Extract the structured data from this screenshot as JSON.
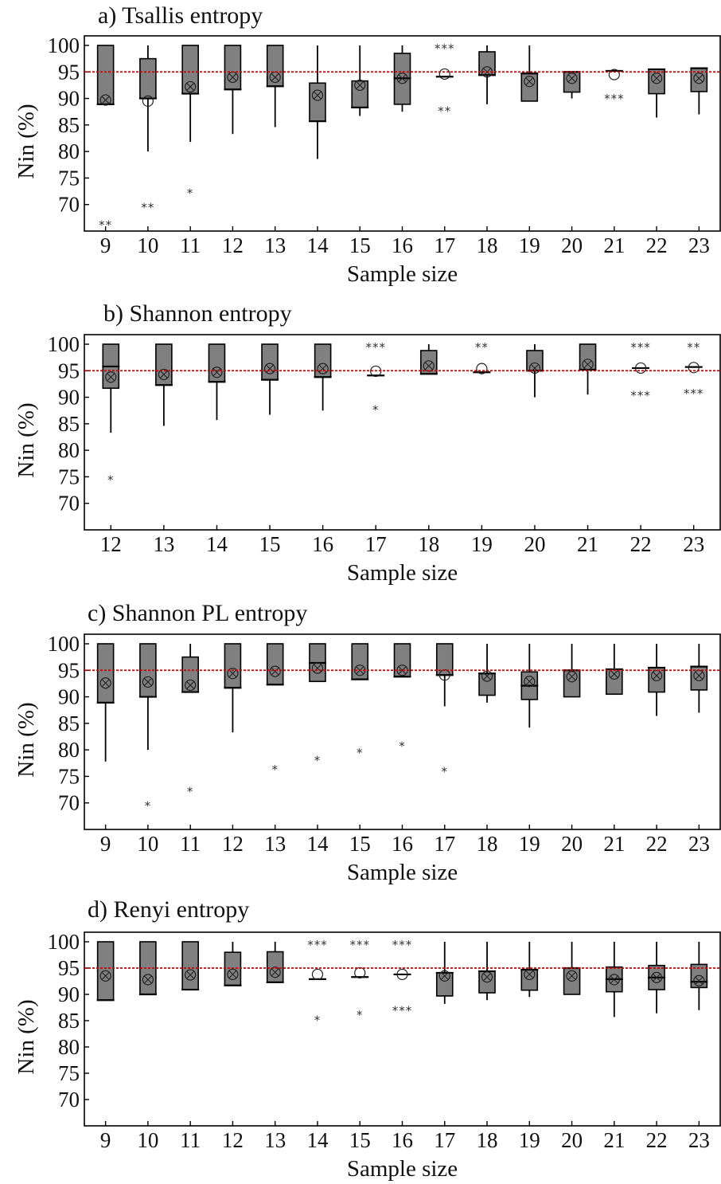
{
  "chart_data": [
    {
      "type": "box",
      "title": "a) Tsallis entropy",
      "xlabel": "Sample size",
      "ylabel": "Nin (%)",
      "ylim": [
        65,
        100
      ],
      "yticks": [
        "70",
        "75",
        "80",
        "85",
        "90",
        "95",
        "100"
      ],
      "reference_line": 95,
      "categories": [
        "9",
        "10",
        "11",
        "12",
        "13",
        "14",
        "15",
        "16",
        "17",
        "18",
        "19",
        "20",
        "21",
        "22",
        "23"
      ],
      "boxes": [
        {
          "q1": 88.9,
          "q3": 100,
          "median": 88.9,
          "whisker_low": 88.9,
          "whisker_high": 100,
          "mean": 89.7,
          "outliers": [
            {
              "y": 66.7,
              "label": "**"
            }
          ]
        },
        {
          "q1": 90.0,
          "q3": 97.5,
          "median": 90.0,
          "whisker_low": 80.0,
          "whisker_high": 100,
          "mean": 89.5,
          "mean_open": true,
          "outliers": [
            {
              "y": 70.0,
              "label": "**"
            }
          ]
        },
        {
          "q1": 90.9,
          "q3": 100,
          "median": 90.9,
          "whisker_low": 81.8,
          "whisker_high": 100,
          "mean": 92.2,
          "outliers": [
            {
              "y": 72.7,
              "label": "*"
            }
          ]
        },
        {
          "q1": 91.7,
          "q3": 100,
          "median": 91.7,
          "whisker_low": 83.3,
          "whisker_high": 100,
          "mean": 94.0,
          "outliers": []
        },
        {
          "q1": 92.3,
          "q3": 100,
          "median": 92.3,
          "whisker_low": 84.6,
          "whisker_high": 100,
          "mean": 94.0,
          "outliers": []
        },
        {
          "q1": 85.7,
          "q3": 92.9,
          "median": 85.7,
          "whisker_low": 78.6,
          "whisker_high": 100,
          "mean": 90.6,
          "outliers": []
        },
        {
          "q1": 88.3,
          "q3": 93.3,
          "median": 88.3,
          "whisker_low": 86.7,
          "whisker_high": 100,
          "mean": 92.5,
          "outliers": []
        },
        {
          "q1": 88.9,
          "q3": 98.5,
          "median": 93.8,
          "whisker_low": 87.5,
          "whisker_high": 100,
          "mean": 93.8,
          "outliers": []
        },
        {
          "q1": 94.1,
          "q3": 94.1,
          "median": 94.1,
          "whisker_low": 94.1,
          "whisker_high": 94.1,
          "mean": 94.6,
          "mean_open": true,
          "outliers": [
            {
              "y": 100,
              "label": "***"
            },
            {
              "y": 88.2,
              "label": "**"
            }
          ]
        },
        {
          "q1": 94.4,
          "q3": 98.8,
          "median": 94.4,
          "whisker_low": 88.9,
          "whisker_high": 100,
          "mean": 95.0,
          "outliers": []
        },
        {
          "q1": 89.5,
          "q3": 94.7,
          "median": 94.7,
          "whisker_low": 89.5,
          "whisker_high": 100,
          "mean": 93.2,
          "outliers": []
        },
        {
          "q1": 91.2,
          "q3": 95.0,
          "median": 95.0,
          "whisker_low": 90.0,
          "whisker_high": 95.0,
          "mean": 93.8,
          "outliers": []
        },
        {
          "q1": 95.2,
          "q3": 95.2,
          "median": 95.2,
          "whisker_low": 95.2,
          "whisker_high": 95.2,
          "mean": 94.5,
          "mean_open": true,
          "outliers": [
            {
              "y": 90.5,
              "label": "***"
            }
          ]
        },
        {
          "q1": 90.9,
          "q3": 95.5,
          "median": 95.5,
          "whisker_low": 86.4,
          "whisker_high": 95.5,
          "mean": 93.8,
          "outliers": []
        },
        {
          "q1": 91.3,
          "q3": 95.7,
          "median": 95.7,
          "whisker_low": 87.0,
          "whisker_high": 95.7,
          "mean": 93.8,
          "outliers": []
        }
      ]
    },
    {
      "type": "box",
      "title": "b) Shannon entropy",
      "xlabel": "Sample size",
      "ylabel": "Nin (%)",
      "ylim": [
        65,
        100
      ],
      "yticks": [
        "70",
        "75",
        "80",
        "85",
        "90",
        "95",
        "100"
      ],
      "reference_line": 95,
      "categories": [
        "12",
        "13",
        "14",
        "15",
        "16",
        "17",
        "18",
        "19",
        "20",
        "21",
        "22",
        "23"
      ],
      "boxes": [
        {
          "q1": 91.7,
          "q3": 100,
          "median": 95.8,
          "whisker_low": 83.3,
          "whisker_high": 100,
          "mean": 93.8,
          "outliers": [
            {
              "y": 75.0,
              "label": "*"
            }
          ]
        },
        {
          "q1": 92.3,
          "q3": 100,
          "median": 92.3,
          "whisker_low": 84.6,
          "whisker_high": 100,
          "mean": 94.3,
          "outliers": []
        },
        {
          "q1": 92.9,
          "q3": 100,
          "median": 92.9,
          "whisker_low": 85.7,
          "whisker_high": 100,
          "mean": 94.7,
          "outliers": []
        },
        {
          "q1": 93.3,
          "q3": 100,
          "median": 93.3,
          "whisker_low": 86.7,
          "whisker_high": 100,
          "mean": 95.4,
          "outliers": []
        },
        {
          "q1": 93.8,
          "q3": 100,
          "median": 93.8,
          "whisker_low": 87.5,
          "whisker_high": 100,
          "mean": 95.4,
          "outliers": []
        },
        {
          "q1": 94.1,
          "q3": 94.1,
          "median": 94.1,
          "whisker_low": 94.1,
          "whisker_high": 94.1,
          "mean": 94.9,
          "mean_open": true,
          "outliers": [
            {
              "y": 100,
              "label": "***"
            },
            {
              "y": 88.2,
              "label": "*"
            }
          ]
        },
        {
          "q1": 94.4,
          "q3": 98.8,
          "median": 94.4,
          "whisker_low": 94.4,
          "whisker_high": 100,
          "mean": 95.9,
          "outliers": []
        },
        {
          "q1": 94.7,
          "q3": 94.7,
          "median": 94.7,
          "whisker_low": 94.7,
          "whisker_high": 94.7,
          "mean": 95.4,
          "mean_open": true,
          "outliers": [
            {
              "y": 100,
              "label": "**"
            }
          ]
        },
        {
          "q1": 95.0,
          "q3": 98.8,
          "median": 95.0,
          "whisker_low": 90.0,
          "whisker_high": 100,
          "mean": 95.5,
          "outliers": []
        },
        {
          "q1": 95.2,
          "q3": 100,
          "median": 95.2,
          "whisker_low": 90.5,
          "whisker_high": 100,
          "mean": 96.2,
          "outliers": []
        },
        {
          "q1": 95.5,
          "q3": 95.5,
          "median": 95.5,
          "whisker_low": 95.5,
          "whisker_high": 95.5,
          "mean": 95.5,
          "mean_open": true,
          "outliers": [
            {
              "y": 100,
              "label": "***"
            },
            {
              "y": 90.9,
              "label": "***"
            }
          ]
        },
        {
          "q1": 95.7,
          "q3": 95.7,
          "median": 95.7,
          "whisker_low": 95.7,
          "whisker_high": 95.7,
          "mean": 95.6,
          "mean_open": true,
          "outliers": [
            {
              "y": 100,
              "label": "**"
            },
            {
              "y": 91.3,
              "label": "***"
            }
          ]
        }
      ]
    },
    {
      "type": "box",
      "title": "c) Shannon PL entropy",
      "xlabel": "Sample size",
      "ylabel": "Nin (%)",
      "ylim": [
        65,
        100
      ],
      "yticks": [
        "70",
        "75",
        "80",
        "85",
        "90",
        "95",
        "100"
      ],
      "reference_line": 95,
      "categories": [
        "9",
        "10",
        "11",
        "12",
        "13",
        "14",
        "15",
        "16",
        "17",
        "18",
        "19",
        "20",
        "21",
        "22",
        "23"
      ],
      "boxes": [
        {
          "q1": 88.9,
          "q3": 100,
          "median": 88.9,
          "whisker_low": 77.8,
          "whisker_high": 100,
          "mean": 92.6,
          "outliers": []
        },
        {
          "q1": 90.0,
          "q3": 100,
          "median": 90.0,
          "whisker_low": 80.0,
          "whisker_high": 100,
          "mean": 92.8,
          "outliers": [
            {
              "y": 70.0,
              "label": "*"
            }
          ]
        },
        {
          "q1": 90.9,
          "q3": 97.5,
          "median": 90.9,
          "whisker_low": 90.9,
          "whisker_high": 100,
          "mean": 92.2,
          "outliers": [
            {
              "y": 72.7,
              "label": "*"
            }
          ]
        },
        {
          "q1": 91.7,
          "q3": 100,
          "median": 91.7,
          "whisker_low": 83.3,
          "whisker_high": 100,
          "mean": 94.4,
          "outliers": []
        },
        {
          "q1": 92.3,
          "q3": 100,
          "median": 92.3,
          "whisker_low": 92.3,
          "whisker_high": 100,
          "mean": 94.8,
          "outliers": [
            {
              "y": 76.9,
              "label": "*"
            }
          ]
        },
        {
          "q1": 92.9,
          "q3": 100,
          "median": 96.4,
          "whisker_low": 92.9,
          "whisker_high": 100,
          "mean": 95.4,
          "outliers": [
            {
              "y": 78.6,
              "label": "*"
            }
          ]
        },
        {
          "q1": 93.3,
          "q3": 100,
          "median": 93.3,
          "whisker_low": 93.3,
          "whisker_high": 100,
          "mean": 95.0,
          "outliers": [
            {
              "y": 80.0,
              "label": "*"
            }
          ]
        },
        {
          "q1": 93.8,
          "q3": 100,
          "median": 93.8,
          "whisker_low": 93.8,
          "whisker_high": 100,
          "mean": 95.0,
          "outliers": [
            {
              "y": 81.3,
              "label": "*"
            }
          ]
        },
        {
          "q1": 94.1,
          "q3": 100,
          "median": 94.1,
          "whisker_low": 88.2,
          "whisker_high": 100,
          "mean": 94.1,
          "mean_open": true,
          "outliers": [
            {
              "y": 76.5,
              "label": "*"
            }
          ]
        },
        {
          "q1": 90.3,
          "q3": 94.4,
          "median": 94.4,
          "whisker_low": 88.9,
          "whisker_high": 100,
          "mean": 93.9,
          "outliers": []
        },
        {
          "q1": 89.5,
          "q3": 94.7,
          "median": 92.1,
          "whisker_low": 84.2,
          "whisker_high": 100,
          "mean": 92.9,
          "outliers": []
        },
        {
          "q1": 90.0,
          "q3": 95.0,
          "median": 95.0,
          "whisker_low": 90.0,
          "whisker_high": 100,
          "mean": 93.8,
          "outliers": []
        },
        {
          "q1": 90.5,
          "q3": 95.2,
          "median": 95.2,
          "whisker_low": 90.5,
          "whisker_high": 100,
          "mean": 94.3,
          "outliers": []
        },
        {
          "q1": 90.9,
          "q3": 95.5,
          "median": 95.5,
          "whisker_low": 86.4,
          "whisker_high": 100,
          "mean": 94.0,
          "outliers": []
        },
        {
          "q1": 91.3,
          "q3": 95.7,
          "median": 95.7,
          "whisker_low": 87.0,
          "whisker_high": 100,
          "mean": 94.0,
          "outliers": []
        }
      ]
    },
    {
      "type": "box",
      "title": "d) Renyi entropy",
      "xlabel": "Sample size",
      "ylabel": "Nin (%)",
      "ylim": [
        65,
        100
      ],
      "yticks": [
        "70",
        "75",
        "80",
        "85",
        "90",
        "95",
        "100"
      ],
      "reference_line": 95,
      "categories": [
        "9",
        "10",
        "11",
        "12",
        "13",
        "14",
        "15",
        "16",
        "17",
        "18",
        "19",
        "20",
        "21",
        "22",
        "23"
      ],
      "boxes": [
        {
          "q1": 88.9,
          "q3": 100,
          "median": 88.9,
          "whisker_low": 88.9,
          "whisker_high": 100,
          "mean": 93.5,
          "outliers": []
        },
        {
          "q1": 90.0,
          "q3": 100,
          "median": 90.0,
          "whisker_low": 90.0,
          "whisker_high": 100,
          "mean": 92.8,
          "outliers": []
        },
        {
          "q1": 90.9,
          "q3": 100,
          "median": 90.9,
          "whisker_low": 90.9,
          "whisker_high": 100,
          "mean": 93.7,
          "outliers": []
        },
        {
          "q1": 91.7,
          "q3": 98.0,
          "median": 91.7,
          "whisker_low": 91.7,
          "whisker_high": 100,
          "mean": 93.8,
          "outliers": []
        },
        {
          "q1": 92.3,
          "q3": 98.1,
          "median": 92.3,
          "whisker_low": 92.3,
          "whisker_high": 100,
          "mean": 94.2,
          "outliers": []
        },
        {
          "q1": 92.9,
          "q3": 92.9,
          "median": 92.9,
          "whisker_low": 92.9,
          "whisker_high": 92.9,
          "mean": 93.8,
          "mean_open": true,
          "outliers": [
            {
              "y": 100,
              "label": "***"
            },
            {
              "y": 85.7,
              "label": "*"
            }
          ]
        },
        {
          "q1": 93.3,
          "q3": 93.3,
          "median": 93.3,
          "whisker_low": 93.3,
          "whisker_high": 93.3,
          "mean": 94.1,
          "mean_open": true,
          "outliers": [
            {
              "y": 100,
              "label": "***"
            },
            {
              "y": 86.7,
              "label": "*"
            }
          ]
        },
        {
          "q1": 93.8,
          "q3": 93.8,
          "median": 93.8,
          "whisker_low": 93.8,
          "whisker_high": 93.8,
          "mean": 93.8,
          "mean_open": true,
          "outliers": [
            {
              "y": 100,
              "label": "***"
            },
            {
              "y": 87.5,
              "label": "***"
            }
          ]
        },
        {
          "q1": 89.7,
          "q3": 94.1,
          "median": 94.1,
          "whisker_low": 88.2,
          "whisker_high": 100,
          "mean": 93.5,
          "outliers": []
        },
        {
          "q1": 90.3,
          "q3": 94.4,
          "median": 94.4,
          "whisker_low": 88.9,
          "whisker_high": 100,
          "mean": 93.3,
          "outliers": []
        },
        {
          "q1": 90.8,
          "q3": 94.7,
          "median": 94.7,
          "whisker_low": 89.5,
          "whisker_high": 100,
          "mean": 93.8,
          "outliers": []
        },
        {
          "q1": 90.0,
          "q3": 95.0,
          "median": 95.0,
          "whisker_low": 90.0,
          "whisker_high": 100,
          "mean": 93.5,
          "outliers": []
        },
        {
          "q1": 90.5,
          "q3": 95.2,
          "median": 92.9,
          "whisker_low": 85.7,
          "whisker_high": 100,
          "mean": 92.8,
          "outliers": []
        },
        {
          "q1": 90.9,
          "q3": 95.5,
          "median": 93.2,
          "whisker_low": 86.4,
          "whisker_high": 100,
          "mean": 93.2,
          "outliers": []
        },
        {
          "q1": 91.3,
          "q3": 95.7,
          "median": 92.4,
          "whisker_low": 87.0,
          "whisker_high": 100,
          "mean": 92.6,
          "outliers": []
        }
      ]
    }
  ],
  "colors": {
    "box_fill": "#808080",
    "reference_line": "#cc0000",
    "frame": "#000000"
  }
}
